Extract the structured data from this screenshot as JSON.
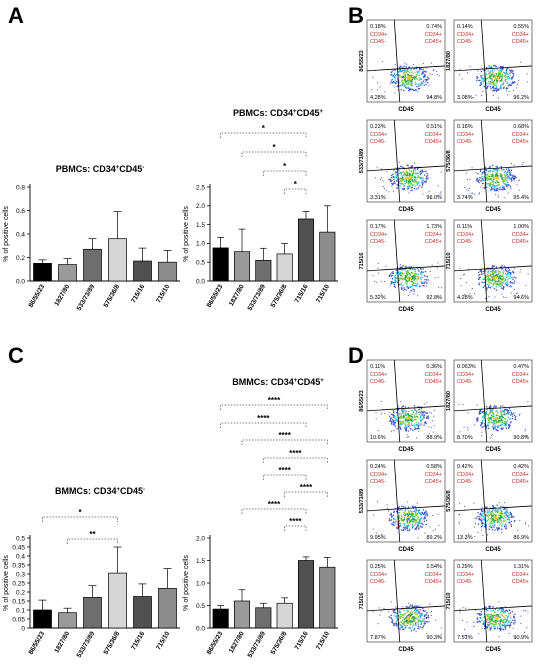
{
  "panels": {
    "A": "A",
    "B": "B",
    "C": "C",
    "D": "D"
  },
  "ylabel": "% of positive cells",
  "groups": [
    "86/55/23",
    "1827/80",
    "533/73/89",
    "575/36/8",
    "715/16",
    "715/10"
  ],
  "bar_colors": [
    "#000000",
    "#9a9a9a",
    "#6e6e6e",
    "#d6d6d6",
    "#505050",
    "#8c8c8c"
  ],
  "chart_data": [
    {
      "type": "bar",
      "title": "PBMCs: CD34+CD45-",
      "title_parts": [
        "PBMCs: CD34",
        "+",
        "CD45",
        "-"
      ],
      "ylabel": "% of positive cells",
      "categories": [
        "86/55/23",
        "1827/80",
        "533/73/89",
        "575/36/8",
        "715/16",
        "715/10"
      ],
      "values": [
        0.15,
        0.14,
        0.27,
        0.36,
        0.17,
        0.16
      ],
      "errors": [
        0.03,
        0.05,
        0.09,
        0.23,
        0.11,
        0.1
      ],
      "ylim": [
        0,
        0.8
      ],
      "yticks": [
        "0.0",
        "0.2",
        "0.4",
        "0.6",
        "0.8"
      ],
      "significance": []
    },
    {
      "type": "bar",
      "title": "PBMCs: CD34+CD45+",
      "title_parts": [
        "PBMCs: CD34",
        "+",
        "CD45",
        "+"
      ],
      "ylabel": "% of positive cells",
      "categories": [
        "86/55/23",
        "1827/80",
        "533/73/89",
        "575/36/8",
        "715/16",
        "715/10"
      ],
      "values": [
        0.88,
        0.78,
        0.55,
        0.72,
        1.65,
        1.3
      ],
      "errors": [
        0.28,
        0.6,
        0.32,
        0.28,
        0.2,
        0.7
      ],
      "ylim": [
        0,
        2.5
      ],
      "yticks": [
        "0.0",
        "0.5",
        "1.0",
        "1.5",
        "2.0",
        "2.5"
      ],
      "significance": [
        {
          "from": 0,
          "to": 4,
          "label": "*"
        },
        {
          "from": 1,
          "to": 4,
          "label": "*"
        },
        {
          "from": 2,
          "to": 4,
          "label": "*"
        },
        {
          "from": 3,
          "to": 4,
          "label": "*"
        }
      ]
    },
    {
      "type": "bar",
      "title": "BMMCs: CD34+CD45-",
      "title_parts": [
        "BMMCs: CD34",
        "+",
        "CD45",
        "-"
      ],
      "ylabel": "% of positive cells",
      "categories": [
        "86/55/23",
        "1827/80",
        "533/73/89",
        "575/36/8",
        "715/16",
        "715/10"
      ],
      "values": [
        0.1,
        0.085,
        0.17,
        0.305,
        0.175,
        0.22
      ],
      "errors": [
        0.055,
        0.025,
        0.065,
        0.145,
        0.07,
        0.11
      ],
      "ylim": [
        0,
        0.5
      ],
      "yticks": [
        "0",
        "0.05",
        "0.1",
        "0.15",
        "0.2",
        "0.25",
        "0.3",
        "0.35",
        "0.4",
        "0.45",
        "0.5"
      ],
      "significance": [
        {
          "from": 0,
          "to": 3,
          "label": "*"
        },
        {
          "from": 1,
          "to": 3,
          "label": "**"
        }
      ]
    },
    {
      "type": "bar",
      "title": "BMMCs: CD34+CD45+",
      "title_parts": [
        "BMMCs: CD34",
        "+",
        "CD45",
        "+"
      ],
      "ylabel": "% of positive cells",
      "categories": [
        "86/55/23",
        "1827/80",
        "533/73/89",
        "575/36/8",
        "715/16",
        "715/10"
      ],
      "values": [
        0.42,
        0.6,
        0.45,
        0.55,
        1.5,
        1.35
      ],
      "errors": [
        0.08,
        0.25,
        0.1,
        0.12,
        0.08,
        0.22
      ],
      "ylim": [
        0,
        2.0
      ],
      "yticks": [
        "0.0",
        "0.5",
        "1.0",
        "1.5",
        "2.0"
      ],
      "significance": [
        {
          "from": 0,
          "to": 5,
          "label": "****"
        },
        {
          "from": 0,
          "to": 4,
          "label": "****"
        },
        {
          "from": 1,
          "to": 5,
          "label": "****"
        },
        {
          "from": 2,
          "to": 5,
          "label": "****"
        },
        {
          "from": 2,
          "to": 4,
          "label": "****"
        },
        {
          "from": 3,
          "to": 5,
          "label": "****"
        },
        {
          "from": 1,
          "to": 4,
          "label": "****"
        },
        {
          "from": 3,
          "to": 4,
          "label": "****"
        }
      ]
    }
  ],
  "flow_panels": [
    {
      "panel": "B",
      "plots": [
        {
          "ylabel": "86/55/23",
          "xlabel": "CD45",
          "q1": "0.18%",
          "q2": "0.74%",
          "q3": "4.28%",
          "q4": "94.8%"
        },
        {
          "ylabel": "1827/80",
          "xlabel": "CD45",
          "q1": "0.14%",
          "q2": "0.55%",
          "q3": "3.08%",
          "q4": "96.2%"
        },
        {
          "ylabel": "533/73/89",
          "xlabel": "CD45",
          "q1": "0.23%",
          "q2": "0.51%",
          "q3": "3.31%",
          "q4": "96.0%"
        },
        {
          "ylabel": "575/36/8",
          "xlabel": "CD45",
          "q1": "0.18%",
          "q2": "0.68%",
          "q3": "3.74%",
          "q4": "95.4%"
        },
        {
          "ylabel": "715/16",
          "xlabel": "CD45",
          "q1": "0.17%",
          "q2": "1.73%",
          "q3": "5.32%",
          "q4": "92.8%"
        },
        {
          "ylabel": "715/10",
          "xlabel": "CD45",
          "q1": "0.11%",
          "q2": "1.00%",
          "q3": "4.28%",
          "q4": "94.6%"
        }
      ]
    },
    {
      "panel": "D",
      "plots": [
        {
          "ylabel": "86/55/23",
          "xlabel": "CD45",
          "q1": "0.11%",
          "q2": "0.36%",
          "q3": "10.6%",
          "q4": "88.9%"
        },
        {
          "ylabel": "1827/80",
          "xlabel": "CD45",
          "q1": "0.063%",
          "q2": "0.47%",
          "q3": "8.70%",
          "q4": "90.8%"
        },
        {
          "ylabel": "533/73/89",
          "xlabel": "CD45",
          "q1": "0.24%",
          "q2": "0.58%",
          "q3": "9.95%",
          "q4": "89.2%"
        },
        {
          "ylabel": "575/36/8",
          "xlabel": "CD45",
          "q1": "0.42%",
          "q2": "0.42%",
          "q3": "12.3%",
          "q4": "86.9%"
        },
        {
          "ylabel": "715/16",
          "xlabel": "CD45",
          "q1": "0.25%",
          "q2": "1.54%",
          "q3": "7.87%",
          "q4": "90.3%"
        },
        {
          "ylabel": "715/10",
          "xlabel": "CD45",
          "q1": "0.29%",
          "q2": "1.31%",
          "q3": "7.51%",
          "q4": "90.9%"
        }
      ]
    }
  ],
  "quadrant_labels": {
    "q1": [
      "CD34+",
      "CD45-"
    ],
    "q2": [
      "CD34+",
      "CD45+"
    ]
  }
}
